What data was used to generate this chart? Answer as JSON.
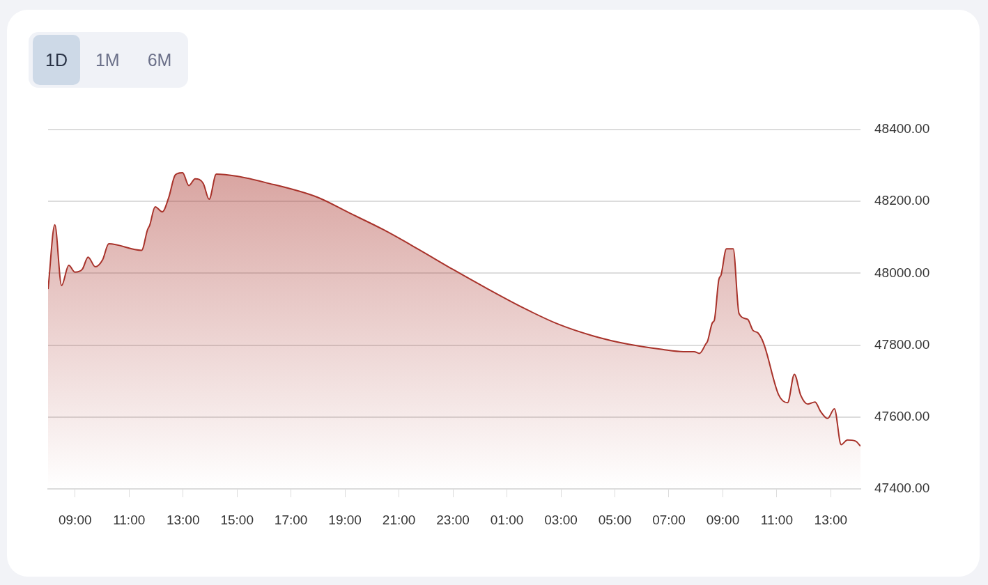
{
  "chart_data": {
    "type": "area",
    "annotations": [
      "1D",
      "1M",
      "6M"
    ],
    "series": [
      {
        "color": "#a8322a",
        "x": [
          "--01-01T08:00",
          "--01-01T08:15",
          "--01-01T08:30",
          "--01-01T08:46",
          "--01-01T09:00",
          "--01-01T09:16",
          "--01-01T09:29",
          "--01-01T09:45",
          "--01-01T10:01",
          "--01-01T10:15",
          "--01-01T11:28",
          "--01-01T11:41",
          "--01-01T11:46",
          "--01-01T11:58",
          "--01-01T12:14",
          "--01-01T12:28",
          "--01-01T12:43",
          "--01-01T12:59",
          "--01-01T13:13",
          "--01-01T13:27",
          "--01-01T13:45",
          "--01-01T13:58",
          "--01-01T14:14",
          "--01-01T15:00",
          "--01-01T16:02",
          "--01-01T17:58",
          "--01-01T19:08",
          "--01-01T20:26",
          "--01-01T21:43",
          "--01-01T23:01",
          "--01-02T00:18",
          "--01-02T01:36",
          "--01-02T02:53",
          "--01-02T04:11",
          "--01-02T05:28",
          "--01-02T06:46",
          "--01-02T07:32",
          "--01-02T07:56",
          "--01-02T08:08",
          "--01-02T08:22",
          "--01-02T08:26",
          "--01-02T08:37",
          "--01-02T08:41",
          "--01-02T08:51",
          "--01-02T08:56",
          "--01-02T09:08",
          "--01-02T09:23",
          "--01-02T09:36",
          "--01-02T09:55",
          "--01-02T10:07",
          "--01-02T10:18",
          "--01-02T10:31",
          "--01-02T11:04",
          "--01-02T11:24",
          "--01-02T11:39",
          "--01-02T11:53",
          "--01-02T12:09",
          "--01-02T12:25",
          "--01-02T12:37",
          "--01-02T12:53",
          "--01-02T13:08",
          "--01-02T13:23",
          "--01-02T13:37",
          "--01-02T13:55",
          "--01-02T14:06"
        ],
        "values": [
          47956,
          48135,
          47966,
          48022,
          48003,
          48011,
          48045,
          48018,
          48037,
          48082,
          48064,
          48121,
          48134,
          48185,
          48171,
          48210,
          48274,
          48280,
          48244,
          48263,
          48250,
          48206,
          48276,
          48270,
          48253,
          48212,
          48169,
          48121,
          48067,
          48010,
          47956,
          47904,
          47859,
          47826,
          47803,
          47788,
          47782,
          47782,
          47777,
          47803,
          47811,
          47863,
          47869,
          47982,
          47995,
          48068,
          48068,
          47888,
          47872,
          47841,
          47834,
          47804,
          47662,
          47640,
          47719,
          47661,
          47636,
          47642,
          47616,
          47596,
          47623,
          47523,
          47536,
          47533,
          47519
        ]
      }
    ],
    "xlim": [
      "--01-01T08:00",
      "--01-02T14:06"
    ],
    "xticks": [
      {
        "value": "--01-01T09:00",
        "label": "09:00"
      },
      {
        "value": "--01-01T11:00",
        "label": "11:00"
      },
      {
        "value": "--01-01T13:00",
        "label": "13:00"
      },
      {
        "value": "--01-01T15:00",
        "label": "15:00"
      },
      {
        "value": "--01-01T17:00",
        "label": "17:00"
      },
      {
        "value": "--01-01T19:00",
        "label": "19:00"
      },
      {
        "value": "--01-01T21:00",
        "label": "21:00"
      },
      {
        "value": "--01-01T23:00",
        "label": "23:00"
      },
      {
        "value": "--01-02T01:00",
        "label": "01:00"
      },
      {
        "value": "--01-02T03:00",
        "label": "03:00"
      },
      {
        "value": "--01-02T05:00",
        "label": "05:00"
      },
      {
        "value": "--01-02T07:00",
        "label": "07:00"
      },
      {
        "value": "--01-02T09:00",
        "label": "09:00"
      },
      {
        "value": "--01-02T11:00",
        "label": "11:00"
      },
      {
        "value": "--01-02T13:00",
        "label": "13:00"
      }
    ],
    "ylim": [
      47400,
      48400
    ],
    "yticks": [
      {
        "value": 47400,
        "label": "47400.00"
      },
      {
        "value": 47600,
        "label": "47600.00"
      },
      {
        "value": 47800,
        "label": "47800.00"
      },
      {
        "value": 48000,
        "label": "48000.00"
      },
      {
        "value": 48200,
        "label": "48200.00"
      },
      {
        "value": 48400,
        "label": "48400.00"
      }
    ],
    "grid": "y",
    "legend": false,
    "marker": "none"
  }
}
